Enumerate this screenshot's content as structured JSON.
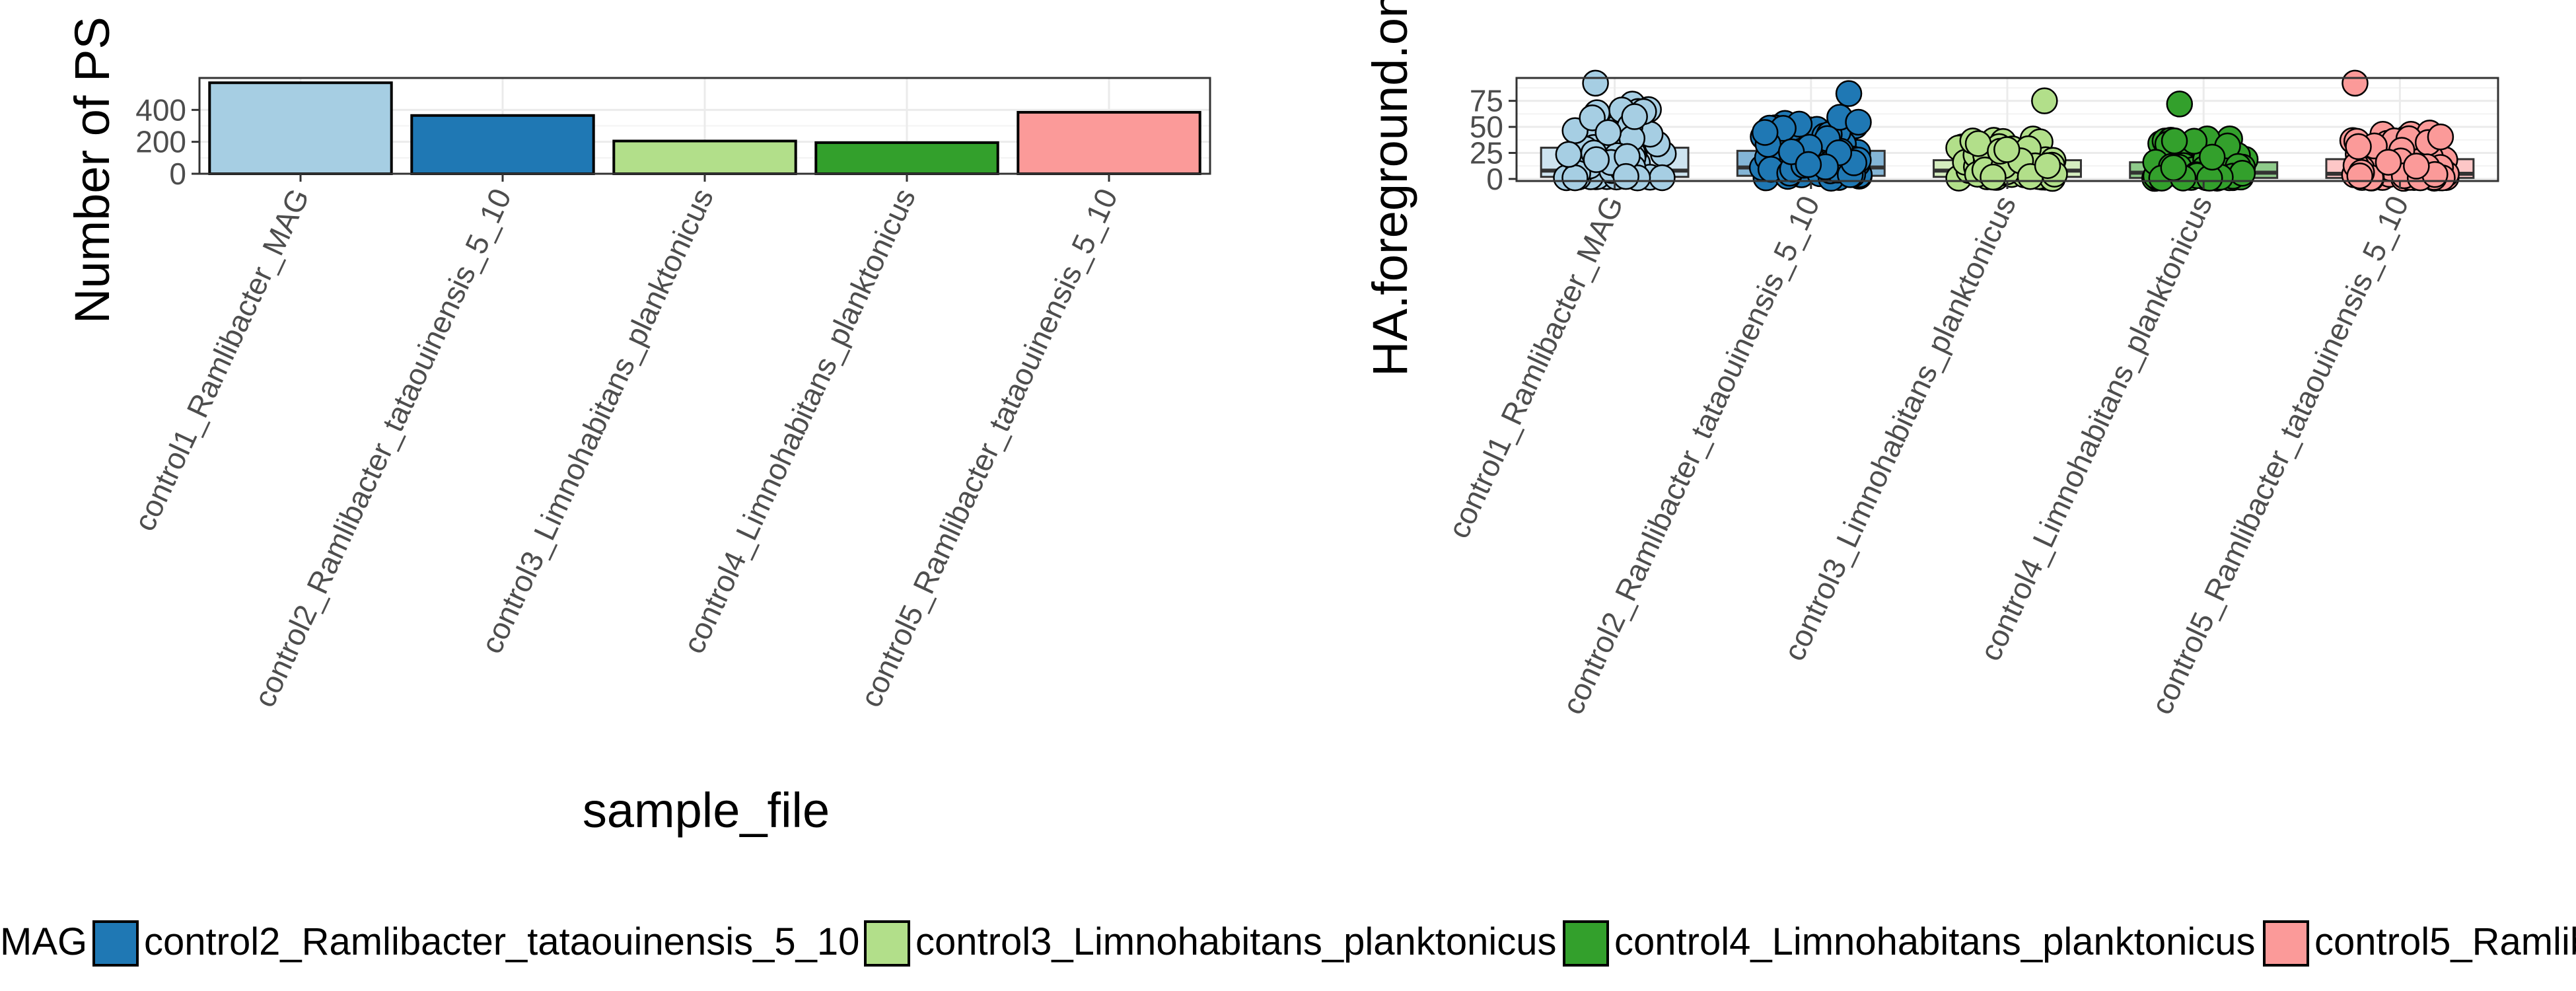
{
  "colors": {
    "control1": "#a6cee3",
    "control2": "#1f78b4",
    "control3": "#b2df8a",
    "control4": "#33a02c",
    "control5": "#fb9a99",
    "panel_border": "#333333",
    "grid": "#ebebeb",
    "text": "#000000",
    "tick_text": "#4d4d4d"
  },
  "chart_data": [
    {
      "type": "bar",
      "ylabel": "Number of PS",
      "xlabel": "sample_file",
      "categories": [
        "control1_Ramlibacter_MAG",
        "control2_Ramlibacter_tataouinensis_5_10",
        "control3_Limnohabitans_planktonicus",
        "control4_Limnohabitans_planktonicus",
        "control5_Ramlibacter_tataouinensis_5_10"
      ],
      "values": [
        570,
        365,
        205,
        195,
        385
      ],
      "ylim": [
        0,
        600
      ],
      "yticks": [
        "0",
        "200",
        "400"
      ],
      "ytick_values": [
        0,
        200,
        400
      ],
      "grid": true
    },
    {
      "type": "box",
      "ylabel": "HA.foreground.on",
      "categories": [
        "control1_Ramlibacter_MAG",
        "control2_Ramlibacter_tataouinensis_5_10",
        "control3_Limnohabitans_planktonicus",
        "control4_Limnohabitans_planktonicus",
        "control5_Ramlibacter_tataouinensis_5_10"
      ],
      "boxes": [
        {
          "q1": 2,
          "median": 8,
          "q3": 30,
          "whisker_high": 72,
          "max": 92
        },
        {
          "q1": 3,
          "median": 11,
          "q3": 27,
          "whisker_high": 60,
          "max": 82
        },
        {
          "q1": 2,
          "median": 8,
          "q3": 18,
          "whisker_high": 40,
          "max": 75
        },
        {
          "q1": 1,
          "median": 6,
          "q3": 16,
          "whisker_high": 40,
          "max": 72
        },
        {
          "q1": 1,
          "median": 5,
          "q3": 19,
          "whisker_high": 45,
          "max": 92
        }
      ],
      "ylim": [
        -2,
        97
      ],
      "yticks": [
        "0",
        "25",
        "50",
        "75"
      ],
      "ytick_values": [
        0,
        25,
        50,
        75
      ],
      "grid": true
    }
  ],
  "legend": {
    "items": [
      "control1_Ramlibacter_MAG",
      "control2_Ramlibacter_tataouinensis_5_10",
      "control3_Limnohabitans_planktonicus",
      "control4_Limnohabitans_planktonicus",
      "control5_Ramlibacter_tataouinensis_5_10"
    ],
    "visible_text": [
      "MAG",
      "control2_Ramlibacter_tataouinensis_5_10",
      "control3_Limnohabitans_planktonicus",
      "control4_Limnohabitans_planktonicus",
      "control5_Ramlib"
    ]
  }
}
